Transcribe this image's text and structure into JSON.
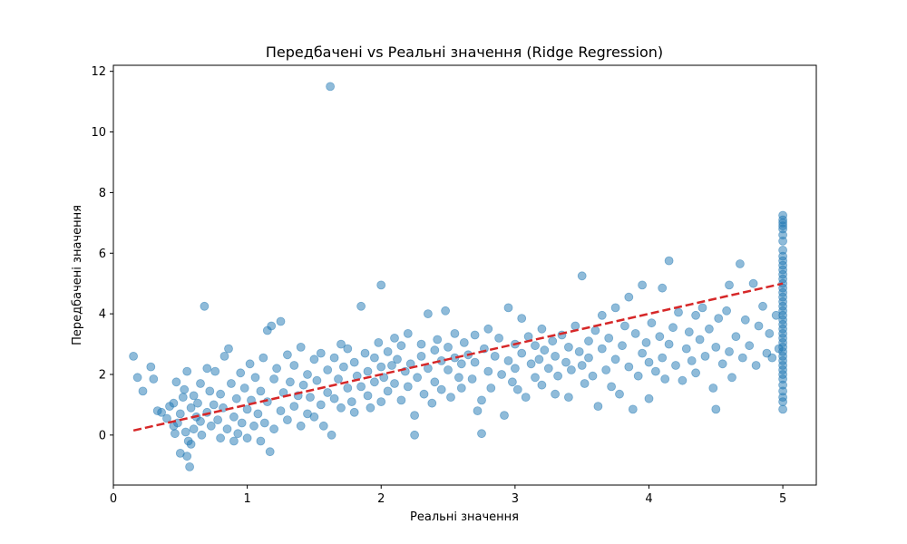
{
  "chart_data": {
    "type": "scatter",
    "title": "Передбачені vs Реальні значення (Ridge Regression)",
    "xlabel": "Реальні значення",
    "ylabel": "Передбачені значення",
    "xlim": [
      0.0,
      5.25
    ],
    "ylim": [
      -1.65,
      12.2
    ],
    "xticks": [
      0,
      1,
      2,
      3,
      4,
      5
    ],
    "yticks": [
      0,
      2,
      4,
      6,
      8,
      10,
      12
    ],
    "grid": false,
    "point_color": "#1f77b4",
    "point_alpha": 0.5,
    "reference_line": {
      "x": [
        0.15,
        5.0
      ],
      "y": [
        0.15,
        5.0
      ],
      "color": "#d62728",
      "style": "dashed"
    },
    "series": [
      {
        "points": [
          [
            0.15,
            2.6
          ],
          [
            0.18,
            1.9
          ],
          [
            0.22,
            1.45
          ],
          [
            0.28,
            2.25
          ],
          [
            0.3,
            1.85
          ],
          [
            0.33,
            0.8
          ],
          [
            0.36,
            0.75
          ],
          [
            0.4,
            0.55
          ],
          [
            0.42,
            0.95
          ],
          [
            0.45,
            1.05
          ],
          [
            0.45,
            0.3
          ],
          [
            0.46,
            0.05
          ],
          [
            0.47,
            1.75
          ],
          [
            0.48,
            0.4
          ],
          [
            0.5,
            0.7
          ],
          [
            0.5,
            -0.6
          ],
          [
            0.52,
            1.25
          ],
          [
            0.53,
            1.5
          ],
          [
            0.54,
            0.1
          ],
          [
            0.55,
            -0.7
          ],
          [
            0.55,
            2.1
          ],
          [
            0.56,
            -0.2
          ],
          [
            0.57,
            -1.05
          ],
          [
            0.58,
            0.9
          ],
          [
            0.58,
            -0.3
          ],
          [
            0.6,
            1.3
          ],
          [
            0.6,
            0.2
          ],
          [
            0.62,
            0.6
          ],
          [
            0.63,
            1.05
          ],
          [
            0.65,
            1.7
          ],
          [
            0.65,
            0.45
          ],
          [
            0.66,
            0.0
          ],
          [
            0.68,
            4.25
          ],
          [
            0.7,
            2.2
          ],
          [
            0.7,
            0.75
          ],
          [
            0.72,
            1.45
          ],
          [
            0.73,
            0.3
          ],
          [
            0.75,
            1.0
          ],
          [
            0.76,
            2.1
          ],
          [
            0.78,
            0.5
          ],
          [
            0.8,
            1.35
          ],
          [
            0.8,
            -0.1
          ],
          [
            0.82,
            0.9
          ],
          [
            0.83,
            2.6
          ],
          [
            0.85,
            0.2
          ],
          [
            0.86,
            2.85
          ],
          [
            0.88,
            1.7
          ],
          [
            0.9,
            0.6
          ],
          [
            0.9,
            -0.2
          ],
          [
            0.92,
            1.2
          ],
          [
            0.93,
            0.05
          ],
          [
            0.95,
            2.05
          ],
          [
            0.96,
            0.4
          ],
          [
            0.98,
            1.55
          ],
          [
            1.0,
            0.85
          ],
          [
            1.0,
            -0.1
          ],
          [
            1.02,
            2.35
          ],
          [
            1.03,
            1.15
          ],
          [
            1.05,
            0.3
          ],
          [
            1.06,
            1.9
          ],
          [
            1.08,
            0.7
          ],
          [
            1.1,
            -0.2
          ],
          [
            1.1,
            1.45
          ],
          [
            1.12,
            2.55
          ],
          [
            1.13,
            0.4
          ],
          [
            1.15,
            1.1
          ],
          [
            1.15,
            3.45
          ],
          [
            1.17,
            -0.55
          ],
          [
            1.18,
            3.6
          ],
          [
            1.2,
            1.85
          ],
          [
            1.2,
            0.2
          ],
          [
            1.22,
            2.2
          ],
          [
            1.25,
            0.8
          ],
          [
            1.25,
            3.75
          ],
          [
            1.27,
            1.4
          ],
          [
            1.3,
            2.65
          ],
          [
            1.3,
            0.5
          ],
          [
            1.32,
            1.75
          ],
          [
            1.35,
            0.95
          ],
          [
            1.35,
            2.3
          ],
          [
            1.38,
            1.3
          ],
          [
            1.4,
            0.3
          ],
          [
            1.4,
            2.9
          ],
          [
            1.42,
            1.65
          ],
          [
            1.45,
            2.0
          ],
          [
            1.45,
            0.7
          ],
          [
            1.47,
            1.25
          ],
          [
            1.5,
            2.5
          ],
          [
            1.5,
            0.6
          ],
          [
            1.52,
            1.8
          ],
          [
            1.55,
            2.7
          ],
          [
            1.55,
            1.0
          ],
          [
            1.57,
            0.3
          ],
          [
            1.6,
            2.15
          ],
          [
            1.6,
            1.4
          ],
          [
            1.62,
            11.5
          ],
          [
            1.63,
            0.0
          ],
          [
            1.65,
            2.55
          ],
          [
            1.65,
            1.2
          ],
          [
            1.68,
            1.85
          ],
          [
            1.7,
            3.0
          ],
          [
            1.7,
            0.9
          ],
          [
            1.72,
            2.25
          ],
          [
            1.75,
            1.55
          ],
          [
            1.75,
            2.85
          ],
          [
            1.78,
            1.1
          ],
          [
            1.8,
            2.4
          ],
          [
            1.8,
            0.75
          ],
          [
            1.82,
            1.95
          ],
          [
            1.85,
            4.25
          ],
          [
            1.85,
            1.6
          ],
          [
            1.88,
            2.7
          ],
          [
            1.9,
            2.1
          ],
          [
            1.9,
            1.3
          ],
          [
            1.92,
            0.9
          ],
          [
            1.95,
            2.55
          ],
          [
            1.95,
            1.75
          ],
          [
            1.98,
            3.05
          ],
          [
            2.0,
            2.25
          ],
          [
            2.0,
            1.1
          ],
          [
            2.0,
            4.95
          ],
          [
            2.02,
            1.9
          ],
          [
            2.05,
            2.75
          ],
          [
            2.05,
            1.45
          ],
          [
            2.08,
            2.3
          ],
          [
            2.1,
            3.2
          ],
          [
            2.1,
            1.7
          ],
          [
            2.12,
            2.5
          ],
          [
            2.15,
            1.15
          ],
          [
            2.15,
            2.95
          ],
          [
            2.18,
            2.1
          ],
          [
            2.2,
            1.6
          ],
          [
            2.2,
            3.35
          ],
          [
            2.22,
            2.35
          ],
          [
            2.25,
            0.65
          ],
          [
            2.25,
            0.0
          ],
          [
            2.27,
            1.9
          ],
          [
            2.3,
            2.6
          ],
          [
            2.3,
            3.0
          ],
          [
            2.32,
            1.35
          ],
          [
            2.35,
            4.0
          ],
          [
            2.35,
            2.2
          ],
          [
            2.38,
            1.05
          ],
          [
            2.4,
            2.8
          ],
          [
            2.4,
            1.75
          ],
          [
            2.42,
            3.15
          ],
          [
            2.45,
            2.45
          ],
          [
            2.45,
            1.5
          ],
          [
            2.48,
            4.1
          ],
          [
            2.5,
            2.15
          ],
          [
            2.5,
            2.9
          ],
          [
            2.52,
            1.25
          ],
          [
            2.55,
            2.55
          ],
          [
            2.55,
            3.35
          ],
          [
            2.58,
            1.9
          ],
          [
            2.6,
            2.35
          ],
          [
            2.6,
            1.55
          ],
          [
            2.62,
            3.05
          ],
          [
            2.65,
            2.65
          ],
          [
            2.68,
            1.85
          ],
          [
            2.7,
            3.3
          ],
          [
            2.7,
            2.4
          ],
          [
            2.72,
            0.8
          ],
          [
            2.75,
            0.05
          ],
          [
            2.75,
            1.15
          ],
          [
            2.77,
            2.85
          ],
          [
            2.8,
            3.5
          ],
          [
            2.8,
            2.1
          ],
          [
            2.82,
            1.55
          ],
          [
            2.85,
            2.6
          ],
          [
            2.88,
            3.2
          ],
          [
            2.9,
            2.0
          ],
          [
            2.92,
            0.65
          ],
          [
            2.95,
            4.2
          ],
          [
            2.95,
            2.45
          ],
          [
            2.98,
            1.75
          ],
          [
            3.0,
            3.0
          ],
          [
            3.0,
            2.2
          ],
          [
            3.02,
            1.5
          ],
          [
            3.05,
            3.85
          ],
          [
            3.05,
            2.7
          ],
          [
            3.08,
            1.25
          ],
          [
            3.1,
            3.25
          ],
          [
            3.12,
            2.35
          ],
          [
            3.15,
            1.9
          ],
          [
            3.15,
            2.95
          ],
          [
            3.18,
            2.5
          ],
          [
            3.2,
            3.5
          ],
          [
            3.2,
            1.65
          ],
          [
            3.22,
            2.8
          ],
          [
            3.25,
            2.2
          ],
          [
            3.28,
            3.1
          ],
          [
            3.3,
            2.6
          ],
          [
            3.3,
            1.35
          ],
          [
            3.32,
            1.95
          ],
          [
            3.35,
            3.3
          ],
          [
            3.38,
            2.4
          ],
          [
            3.4,
            2.9
          ],
          [
            3.4,
            1.25
          ],
          [
            3.42,
            2.15
          ],
          [
            3.45,
            3.6
          ],
          [
            3.48,
            2.75
          ],
          [
            3.5,
            5.25
          ],
          [
            3.5,
            2.3
          ],
          [
            3.52,
            1.7
          ],
          [
            3.55,
            3.1
          ],
          [
            3.55,
            2.55
          ],
          [
            3.58,
            1.95
          ],
          [
            3.6,
            3.45
          ],
          [
            3.62,
            0.95
          ],
          [
            3.65,
            2.85
          ],
          [
            3.65,
            3.95
          ],
          [
            3.68,
            2.15
          ],
          [
            3.7,
            3.2
          ],
          [
            3.72,
            1.6
          ],
          [
            3.75,
            2.5
          ],
          [
            3.75,
            4.2
          ],
          [
            3.78,
            1.35
          ],
          [
            3.8,
            2.95
          ],
          [
            3.82,
            3.6
          ],
          [
            3.85,
            4.55
          ],
          [
            3.85,
            2.25
          ],
          [
            3.88,
            0.85
          ],
          [
            3.9,
            3.35
          ],
          [
            3.92,
            1.95
          ],
          [
            3.95,
            2.7
          ],
          [
            3.95,
            4.95
          ],
          [
            3.98,
            3.05
          ],
          [
            4.0,
            1.2
          ],
          [
            4.0,
            2.4
          ],
          [
            4.02,
            3.7
          ],
          [
            4.05,
            2.1
          ],
          [
            4.08,
            3.25
          ],
          [
            4.1,
            4.85
          ],
          [
            4.1,
            2.55
          ],
          [
            4.12,
            1.85
          ],
          [
            4.15,
            5.75
          ],
          [
            4.15,
            3.0
          ],
          [
            4.18,
            3.55
          ],
          [
            4.2,
            2.3
          ],
          [
            4.22,
            4.05
          ],
          [
            4.25,
            1.8
          ],
          [
            4.28,
            2.85
          ],
          [
            4.3,
            3.4
          ],
          [
            4.32,
            2.45
          ],
          [
            4.35,
            3.95
          ],
          [
            4.35,
            2.05
          ],
          [
            4.38,
            3.15
          ],
          [
            4.4,
            4.2
          ],
          [
            4.42,
            2.6
          ],
          [
            4.45,
            3.5
          ],
          [
            4.48,
            1.55
          ],
          [
            4.5,
            0.85
          ],
          [
            4.5,
            2.9
          ],
          [
            4.52,
            3.85
          ],
          [
            4.55,
            2.35
          ],
          [
            4.58,
            4.1
          ],
          [
            4.6,
            2.75
          ],
          [
            4.6,
            4.95
          ],
          [
            4.62,
            1.9
          ],
          [
            4.65,
            3.25
          ],
          [
            4.68,
            5.65
          ],
          [
            4.7,
            2.55
          ],
          [
            4.72,
            3.8
          ],
          [
            4.75,
            2.95
          ],
          [
            4.78,
            5.0
          ],
          [
            4.8,
            2.3
          ],
          [
            4.82,
            3.6
          ],
          [
            4.85,
            4.25
          ],
          [
            4.88,
            2.7
          ],
          [
            4.9,
            3.35
          ],
          [
            4.92,
            2.55
          ],
          [
            4.95,
            3.95
          ],
          [
            4.97,
            2.85
          ],
          [
            5.0,
            7.25
          ],
          [
            5.0,
            7.1
          ],
          [
            5.0,
            7.0
          ],
          [
            5.0,
            6.9
          ],
          [
            5.0,
            6.8
          ],
          [
            5.0,
            6.6
          ],
          [
            5.0,
            6.4
          ],
          [
            5.0,
            6.1
          ],
          [
            5.0,
            5.9
          ],
          [
            5.0,
            5.75
          ],
          [
            5.0,
            5.6
          ],
          [
            5.0,
            5.45
          ],
          [
            5.0,
            5.3
          ],
          [
            5.0,
            5.15
          ],
          [
            5.0,
            5.0
          ],
          [
            5.0,
            4.85
          ],
          [
            5.0,
            4.7
          ],
          [
            5.0,
            4.55
          ],
          [
            5.0,
            4.4
          ],
          [
            5.0,
            4.25
          ],
          [
            5.0,
            4.1
          ],
          [
            5.0,
            3.95
          ],
          [
            5.0,
            3.8
          ],
          [
            5.0,
            3.65
          ],
          [
            5.0,
            3.5
          ],
          [
            5.0,
            3.35
          ],
          [
            5.0,
            3.2
          ],
          [
            5.0,
            3.05
          ],
          [
            5.0,
            2.9
          ],
          [
            5.0,
            2.75
          ],
          [
            5.0,
            2.6
          ],
          [
            5.0,
            2.45
          ],
          [
            5.0,
            2.3
          ],
          [
            5.0,
            2.15
          ],
          [
            5.0,
            2.0
          ],
          [
            5.0,
            1.85
          ],
          [
            5.0,
            1.65
          ],
          [
            5.0,
            1.45
          ],
          [
            5.0,
            1.25
          ],
          [
            5.0,
            1.1
          ],
          [
            5.0,
            0.85
          ]
        ]
      }
    ]
  }
}
